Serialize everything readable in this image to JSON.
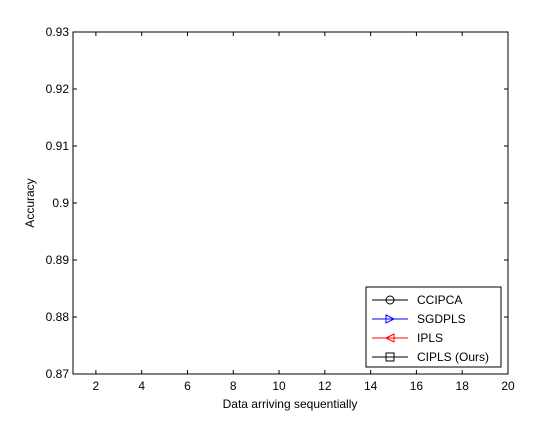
{
  "chart_data": {
    "type": "line",
    "title": "",
    "xlabel": "Data arriving sequentially",
    "ylabel": "Accuracy",
    "xlim": [
      1,
      20
    ],
    "ylim": [
      0.87,
      0.93
    ],
    "x_ticks": [
      2,
      4,
      6,
      8,
      10,
      12,
      14,
      16,
      18,
      20
    ],
    "y_ticks": [
      0.87,
      0.88,
      0.89,
      0.9,
      0.91,
      0.92,
      0.93
    ],
    "x_tick_labels": [
      "2",
      "4",
      "6",
      "8",
      "10",
      "12",
      "14",
      "16",
      "18",
      "20"
    ],
    "y_tick_labels": [
      "0.87",
      "0.88",
      "0.89",
      "0.9",
      "0.91",
      "0.92",
      "0.93"
    ],
    "grid": false,
    "legend_position": "bottom-right",
    "series": [
      {
        "name": "CCIPCA",
        "color": "#000000",
        "marker": "circle",
        "values": []
      },
      {
        "name": "SGDPLS",
        "color": "#0000ff",
        "marker": "triangle-right",
        "values": []
      },
      {
        "name": "IPLS",
        "color": "#ff0000",
        "marker": "triangle-left",
        "values": []
      },
      {
        "name": "CIPLS (Ours)",
        "color": "#000000",
        "marker": "square",
        "values": []
      }
    ]
  }
}
